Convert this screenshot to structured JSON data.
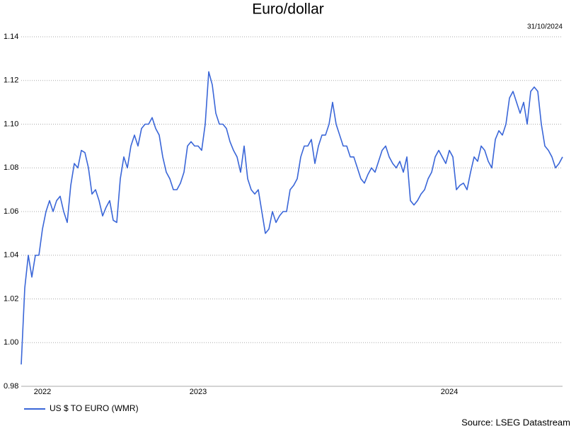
{
  "chart_data": {
    "type": "line",
    "title": "Euro/dollar",
    "date": "31/10/2024",
    "source": "Source: LSEG Datastream",
    "categories": [
      null,
      null,
      null,
      null,
      null,
      null,
      "2022",
      null,
      null,
      null,
      null,
      null,
      null,
      null,
      null,
      null,
      null,
      null,
      null,
      null,
      null,
      null,
      null,
      null,
      null,
      null,
      null,
      null,
      null,
      null,
      null,
      null,
      null,
      null,
      null,
      null,
      null,
      null,
      null,
      null,
      null,
      null,
      null,
      null,
      null,
      null,
      null,
      null,
      null,
      null,
      "2023",
      null,
      null,
      null,
      null,
      null,
      null,
      null,
      null,
      null,
      null,
      null,
      null,
      null,
      null,
      null,
      null,
      null,
      null,
      null,
      null,
      null,
      null,
      null,
      null,
      null,
      null,
      null,
      null,
      null,
      null,
      null,
      null,
      null,
      null,
      null,
      null,
      null,
      null,
      null,
      null,
      null,
      null,
      null,
      null,
      null,
      null,
      null,
      null,
      null,
      null,
      null,
      null,
      null,
      null,
      null,
      null,
      null,
      null,
      null,
      null,
      null,
      null,
      null,
      null,
      null,
      null,
      null,
      null,
      null,
      null,
      "2024",
      null,
      null,
      null,
      null,
      null,
      null,
      null,
      null,
      null,
      null,
      null,
      null,
      null,
      null,
      null,
      null,
      null,
      null,
      null,
      null,
      null,
      null,
      null,
      null,
      null,
      null,
      null,
      null,
      null,
      null,
      null,
      null
    ],
    "series": [
      {
        "name": "US $ TO EURO (WMR)",
        "color": "#3a66d8",
        "values": [
          0.99,
          1.025,
          1.04,
          1.03,
          1.04,
          1.04,
          1.052,
          1.06,
          1.065,
          1.06,
          1.065,
          1.067,
          1.06,
          1.055,
          1.072,
          1.082,
          1.08,
          1.088,
          1.087,
          1.08,
          1.068,
          1.07,
          1.065,
          1.058,
          1.062,
          1.065,
          1.056,
          1.055,
          1.075,
          1.085,
          1.08,
          1.09,
          1.095,
          1.09,
          1.098,
          1.1,
          1.1,
          1.103,
          1.098,
          1.095,
          1.085,
          1.078,
          1.075,
          1.07,
          1.07,
          1.073,
          1.078,
          1.09,
          1.092,
          1.09,
          1.09,
          1.088,
          1.1,
          1.124,
          1.118,
          1.105,
          1.1,
          1.1,
          1.098,
          1.092,
          1.088,
          1.085,
          1.078,
          1.09,
          1.075,
          1.07,
          1.068,
          1.07,
          1.06,
          1.05,
          1.052,
          1.06,
          1.055,
          1.058,
          1.06,
          1.06,
          1.07,
          1.072,
          1.075,
          1.085,
          1.09,
          1.09,
          1.093,
          1.082,
          1.09,
          1.095,
          1.095,
          1.1,
          1.11,
          1.1,
          1.095,
          1.09,
          1.09,
          1.085,
          1.085,
          1.08,
          1.075,
          1.073,
          1.077,
          1.08,
          1.078,
          1.083,
          1.088,
          1.09,
          1.085,
          1.082,
          1.08,
          1.083,
          1.078,
          1.085,
          1.065,
          1.063,
          1.065,
          1.068,
          1.07,
          1.075,
          1.078,
          1.085,
          1.088,
          1.085,
          1.082,
          1.088,
          1.085,
          1.07,
          1.072,
          1.073,
          1.07,
          1.078,
          1.085,
          1.083,
          1.09,
          1.088,
          1.083,
          1.08,
          1.093,
          1.097,
          1.095,
          1.1,
          1.112,
          1.115,
          1.11,
          1.105,
          1.11,
          1.1,
          1.115,
          1.117,
          1.115,
          1.1,
          1.09,
          1.088,
          1.085,
          1.08,
          1.082,
          1.085
        ]
      }
    ],
    "ylim": [
      0.98,
      1.14
    ],
    "yticks": [
      0.98,
      {
        "value": 1,
        "label": "1.00"
      },
      1.02,
      1.04,
      1.06,
      1.08,
      {
        "value": 1.1,
        "label": "1.10"
      },
      1.12,
      1.14
    ],
    "grid": true,
    "legend": "bottom-left"
  }
}
